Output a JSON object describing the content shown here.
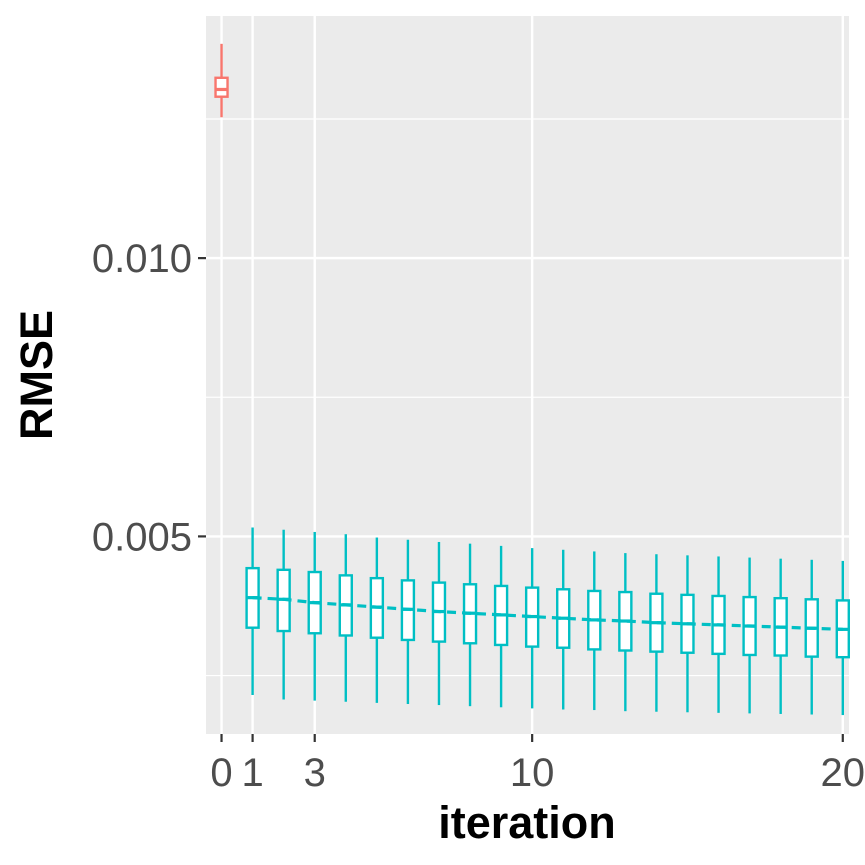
{
  "chart_data": {
    "type": "boxplot",
    "title": "",
    "xlabel": "iteration",
    "ylabel": "RMSE",
    "xlim": [
      -0.5,
      20.2
    ],
    "ylim": [
      0.00145,
      0.01435
    ],
    "x_ticks": [
      0,
      1,
      3,
      10,
      20
    ],
    "x_tick_labels": [
      "0",
      "1",
      "3",
      "10",
      "20"
    ],
    "y_ticks": [
      0.005,
      0.01
    ],
    "y_tick_labels": [
      "0.005",
      "0.010"
    ],
    "grid": true,
    "legend": "none",
    "colors": {
      "baseline": "#F8766D",
      "iterations": "#00BFC4",
      "panel": "#EBEBEB",
      "grid": "#FFFFFF"
    },
    "series": [
      {
        "group": "baseline",
        "boxes": [
          {
            "x": 0,
            "whisker_low": 0.01253,
            "q1": 0.0129,
            "median": 0.01303,
            "q3": 0.01324,
            "whisker_high": 0.01385
          }
        ]
      },
      {
        "group": "iterations",
        "boxes": [
          {
            "x": 1,
            "whisker_low": 0.00215,
            "q1": 0.00336,
            "median": 0.0039,
            "q3": 0.00443,
            "whisker_high": 0.00516
          },
          {
            "x": 2,
            "whisker_low": 0.00207,
            "q1": 0.0033,
            "median": 0.00387,
            "q3": 0.0044,
            "whisker_high": 0.00512
          },
          {
            "x": 3,
            "whisker_low": 0.00205,
            "q1": 0.00326,
            "median": 0.00381,
            "q3": 0.00436,
            "whisker_high": 0.00508
          },
          {
            "x": 4,
            "whisker_low": 0.00203,
            "q1": 0.00322,
            "median": 0.00377,
            "q3": 0.0043,
            "whisker_high": 0.00504
          },
          {
            "x": 5,
            "whisker_low": 0.00201,
            "q1": 0.00318,
            "median": 0.00373,
            "q3": 0.00425,
            "whisker_high": 0.00498
          },
          {
            "x": 6,
            "whisker_low": 0.00199,
            "q1": 0.00314,
            "median": 0.00369,
            "q3": 0.00421,
            "whisker_high": 0.00494
          },
          {
            "x": 7,
            "whisker_low": 0.00197,
            "q1": 0.00311,
            "median": 0.00365,
            "q3": 0.00417,
            "whisker_high": 0.0049
          },
          {
            "x": 8,
            "whisker_low": 0.00195,
            "q1": 0.00308,
            "median": 0.00362,
            "q3": 0.00414,
            "whisker_high": 0.00487
          },
          {
            "x": 9,
            "whisker_low": 0.00193,
            "q1": 0.00305,
            "median": 0.00359,
            "q3": 0.00411,
            "whisker_high": 0.00483
          },
          {
            "x": 10,
            "whisker_low": 0.00191,
            "q1": 0.00302,
            "median": 0.00356,
            "q3": 0.00408,
            "whisker_high": 0.00479
          },
          {
            "x": 11,
            "whisker_low": 0.00189,
            "q1": 0.003,
            "median": 0.00353,
            "q3": 0.00405,
            "whisker_high": 0.00476
          },
          {
            "x": 12,
            "whisker_low": 0.00188,
            "q1": 0.00297,
            "median": 0.0035,
            "q3": 0.00402,
            "whisker_high": 0.00473
          },
          {
            "x": 13,
            "whisker_low": 0.00186,
            "q1": 0.00295,
            "median": 0.00348,
            "q3": 0.004,
            "whisker_high": 0.0047
          },
          {
            "x": 14,
            "whisker_low": 0.00185,
            "q1": 0.00293,
            "median": 0.00345,
            "q3": 0.00397,
            "whisker_high": 0.00468
          },
          {
            "x": 15,
            "whisker_low": 0.00184,
            "q1": 0.00291,
            "median": 0.00343,
            "q3": 0.00395,
            "whisker_high": 0.00466
          },
          {
            "x": 16,
            "whisker_low": 0.00183,
            "q1": 0.00289,
            "median": 0.00341,
            "q3": 0.00393,
            "whisker_high": 0.00464
          },
          {
            "x": 17,
            "whisker_low": 0.00182,
            "q1": 0.00287,
            "median": 0.00339,
            "q3": 0.00391,
            "whisker_high": 0.00462
          },
          {
            "x": 18,
            "whisker_low": 0.00181,
            "q1": 0.00286,
            "median": 0.00337,
            "q3": 0.00389,
            "whisker_high": 0.0046
          },
          {
            "x": 19,
            "whisker_low": 0.0018,
            "q1": 0.00284,
            "median": 0.00335,
            "q3": 0.00387,
            "whisker_high": 0.00458
          },
          {
            "x": 20,
            "whisker_low": 0.00179,
            "q1": 0.00283,
            "median": 0.00333,
            "q3": 0.00385,
            "whisker_high": 0.00456
          }
        ]
      }
    ],
    "trend_line": {
      "group": "iterations",
      "style": "dashed",
      "through": "median"
    }
  }
}
